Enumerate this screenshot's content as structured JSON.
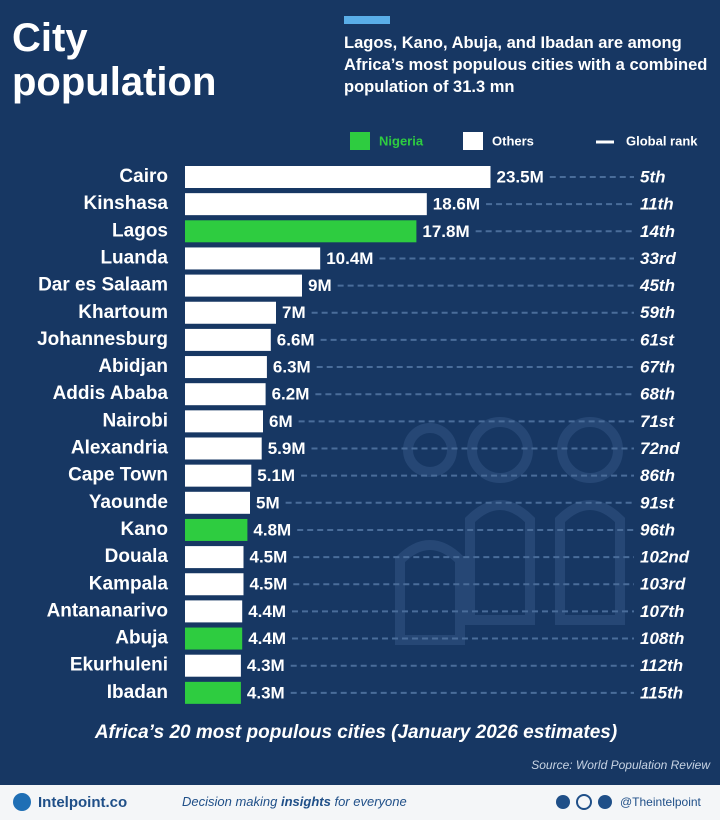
{
  "chart_data": {
    "type": "bar",
    "title": "City population",
    "subtitle": "Lagos, Kano, Abuja, and Ibadan are among Africa’s most populous cities with a combined population of 31.3 mn",
    "caption": "Africa’s 20 most populous cities (January 2026 estimates)",
    "source": "Source: World Population Review",
    "categories": [
      "Cairo",
      "Kinshasa",
      "Lagos",
      "Luanda",
      "Dar es Salaam",
      "Khartoum",
      "Johannesburg",
      "Abidjan",
      "Addis Ababa",
      "Nairobi",
      "Alexandria",
      "Cape Town",
      "Yaounde",
      "Kano",
      "Douala",
      "Kampala",
      "Antananarivo",
      "Abuja",
      "Ekurhuleni",
      "Ibadan"
    ],
    "series": [
      {
        "name": "Nigeria",
        "color": "#2ecc40",
        "values": [
          null,
          null,
          17.8,
          null,
          null,
          null,
          null,
          null,
          null,
          null,
          null,
          null,
          null,
          4.8,
          null,
          null,
          null,
          4.4,
          null,
          4.3
        ],
        "value_labels": [
          null,
          null,
          "17.8M",
          null,
          null,
          null,
          null,
          null,
          null,
          null,
          null,
          null,
          null,
          "4.8M",
          null,
          null,
          null,
          "4.4M",
          null,
          "4.3M"
        ]
      },
      {
        "name": "Others",
        "color": "#ffffff",
        "values": [
          23.5,
          18.6,
          null,
          10.4,
          9,
          7,
          6.6,
          6.3,
          6.2,
          6,
          5.9,
          5.1,
          5,
          null,
          4.5,
          4.5,
          4.4,
          null,
          4.3,
          null
        ],
        "value_labels": [
          "23.5M",
          "18.6M",
          null,
          "10.4M",
          "9M",
          "7M",
          "6.6M",
          "6.3M",
          "6.2M",
          "6M",
          "5.9M",
          "5.1M",
          "5M",
          null,
          "4.5M",
          "4.5M",
          "4.4M",
          null,
          "4.3M",
          null
        ]
      }
    ],
    "rank_name": "Global rank",
    "ranks": [
      "5th",
      "11th",
      "14th",
      "33rd",
      "45th",
      "59th",
      "61st",
      "67th",
      "68th",
      "71st",
      "72nd",
      "86th",
      "91st",
      "96th",
      "102nd",
      "103rd",
      "107th",
      "108th",
      "112th",
      "115th"
    ]
  },
  "footer": {
    "brand": "Intelpoint.co",
    "tagline_start": "Decision making ",
    "tagline_bold": "insights",
    "tagline_end": " for everyone",
    "handle": "@Theintelpoint"
  }
}
